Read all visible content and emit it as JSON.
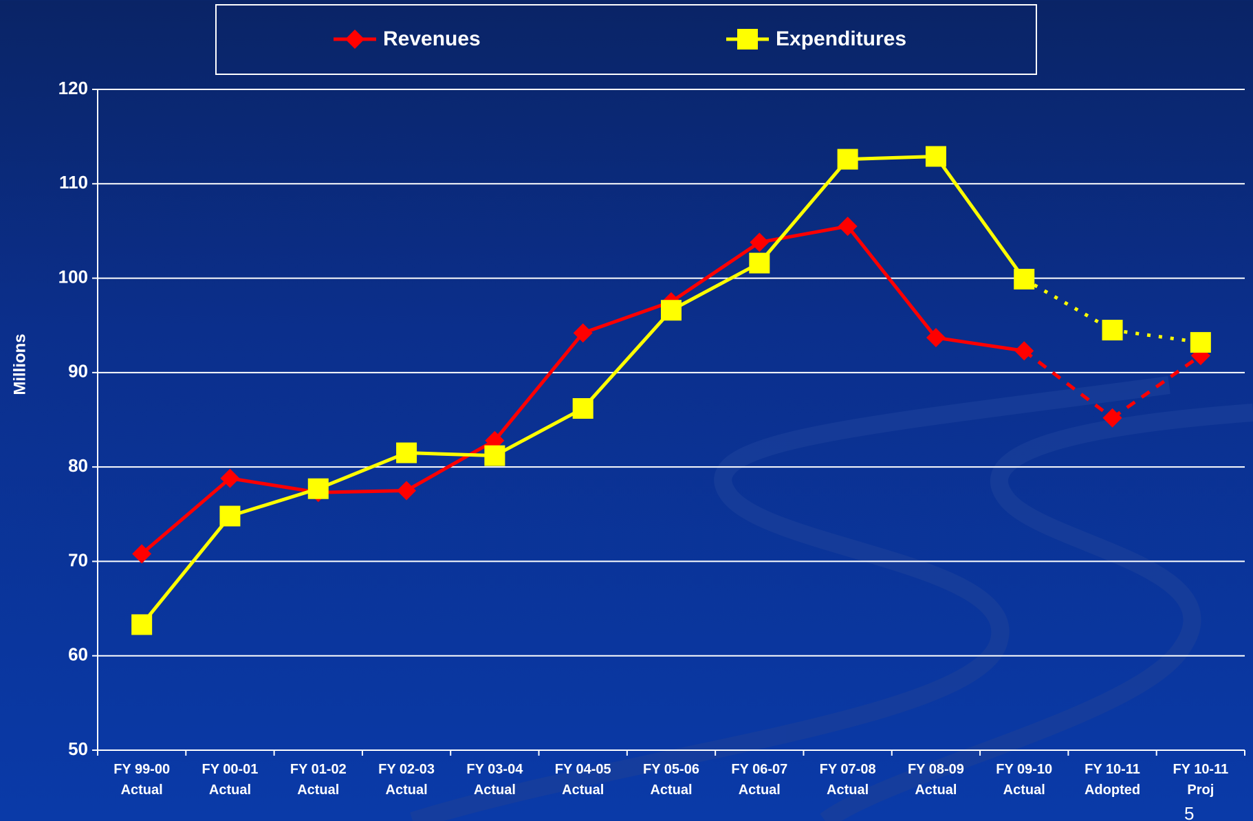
{
  "chart_data": {
    "type": "line",
    "ylabel": "Millions",
    "categories": [
      "FY 99-00\nActual",
      "FY 00-01\nActual",
      "FY 01-02\nActual",
      "FY 02-03\nActual",
      "FY 03-04\nActual",
      "FY 04-05\nActual",
      "FY 05-06\nActual",
      "FY 06-07\nActual",
      "FY 07-08\nActual",
      "FY 08-09\nActual",
      "FY 09-10\nActual",
      "FY 10-11\nAdopted",
      "FY 10-11\nProj"
    ],
    "series": [
      {
        "name": "Revenues",
        "color": "#ff0000",
        "marker": "diamond",
        "values": [
          70.8,
          78.8,
          77.3,
          77.5,
          82.8,
          94.2,
          97.5,
          103.8,
          105.5,
          93.7,
          92.3,
          85.2,
          91.8
        ]
      },
      {
        "name": "Expenditures",
        "color": "#ffff00",
        "marker": "square",
        "values": [
          63.3,
          74.8,
          77.7,
          81.5,
          81.2,
          86.2,
          96.6,
          101.6,
          112.6,
          112.9,
          99.9,
          94.5,
          93.2
        ]
      }
    ],
    "dashed_from_index": 10,
    "ylim": [
      50,
      120
    ],
    "yticks": [
      50,
      60,
      70,
      80,
      90,
      100,
      110,
      120
    ],
    "grid": true,
    "legend": "top"
  },
  "page_number": "5"
}
